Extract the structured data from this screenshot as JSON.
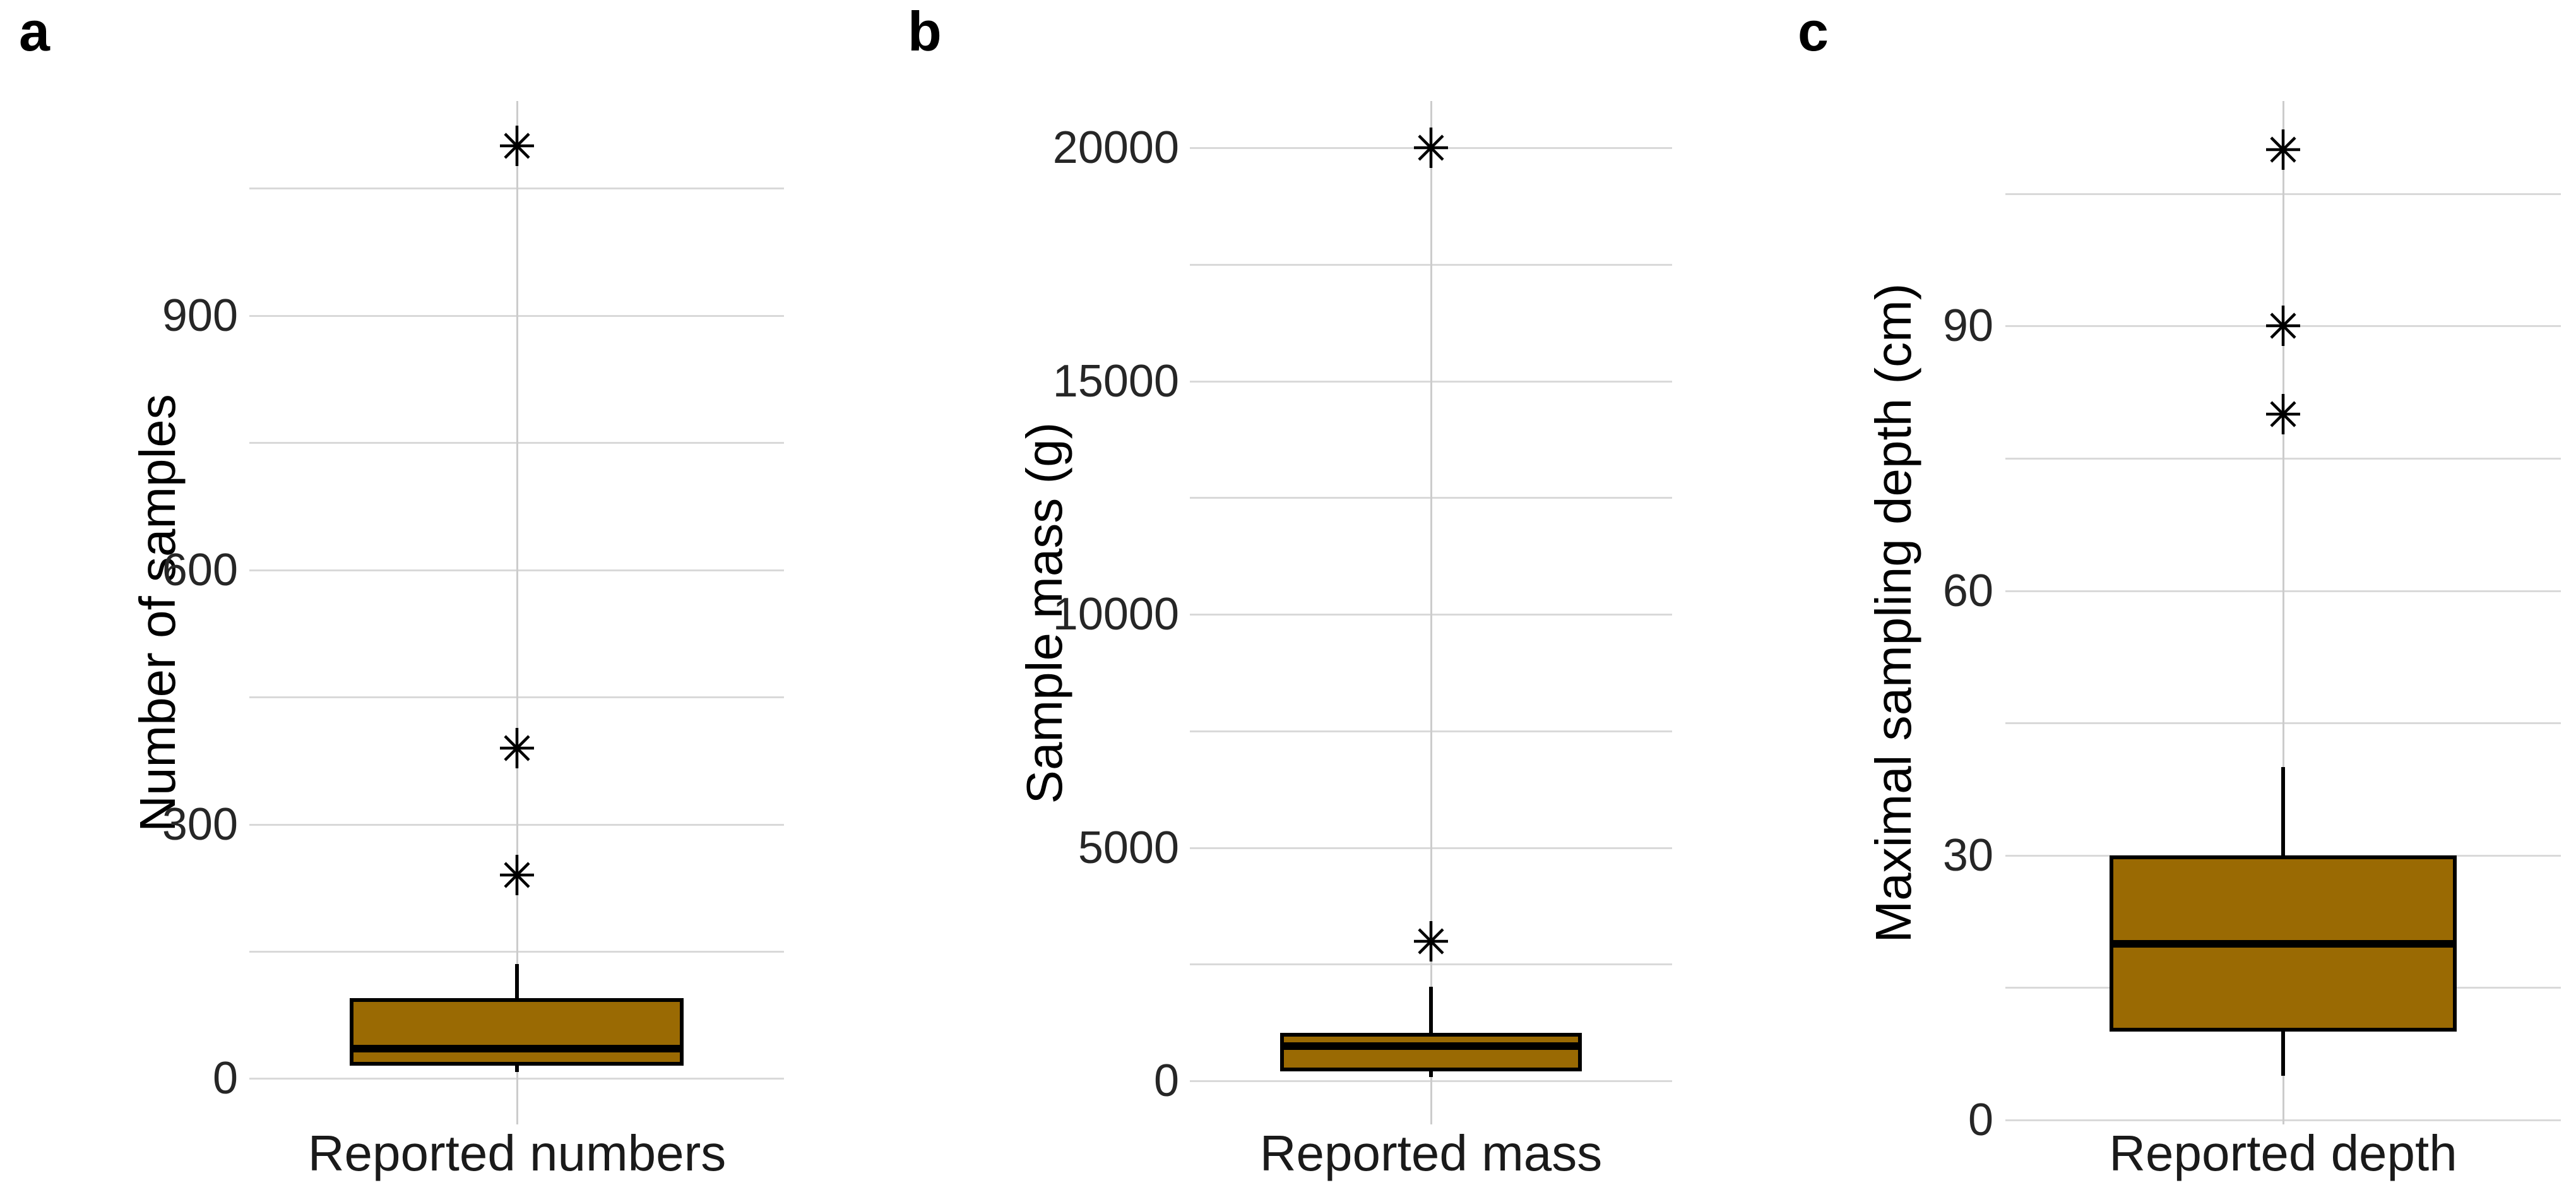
{
  "figure_background": "#ffffff",
  "chart_data": {
    "type": "boxplot",
    "layout_hint": "three vertical box-and-whisker panels, light gray horizontal gridlines, no legend",
    "box_fill": "#9a6a03",
    "box_stroke": "#000000",
    "gridline_color": "#d9d9d9",
    "outlier_marker": "eight-spoked-asterisk",
    "panels": [
      {
        "label": "a",
        "y_title": "Number of samples",
        "x_category": "Reported numbers",
        "y_axis": {
          "range": [
            -54,
            1153
          ],
          "major_ticks": [
            0,
            300,
            600,
            900
          ],
          "minor_ticks": [
            150,
            450,
            750,
            1050
          ]
        },
        "box": {
          "q1": 15,
          "median": 35,
          "q3": 95,
          "whisker_low": 8,
          "whisker_high": 135
        },
        "outliers": [
          240,
          390,
          1100
        ]
      },
      {
        "label": "b",
        "y_title": "Sample mass (g)",
        "x_category": "Reported mass",
        "y_axis": {
          "range": [
            -930,
            21000
          ],
          "major_ticks": [
            0,
            5000,
            10000,
            15000,
            20000
          ],
          "minor_ticks": [
            2500,
            7500,
            12500,
            17500
          ]
        },
        "box": {
          "q1": 200,
          "median": 750,
          "q3": 1030,
          "whisker_low": 80,
          "whisker_high": 2020
        },
        "outliers": [
          3000,
          20000
        ]
      },
      {
        "label": "c",
        "y_title": "Maximal sampling depth (cm)",
        "x_category": "Reported depth",
        "y_axis": {
          "range": [
            -0.5,
            115.5
          ],
          "major_ticks": [
            0,
            30,
            60,
            90
          ],
          "minor_ticks": [
            15,
            45,
            75,
            105
          ]
        },
        "box": {
          "q1": 10,
          "median": 20,
          "q3": 30,
          "whisker_low": 5,
          "whisker_high": 40
        },
        "outliers": [
          80,
          90,
          110
        ]
      }
    ]
  }
}
